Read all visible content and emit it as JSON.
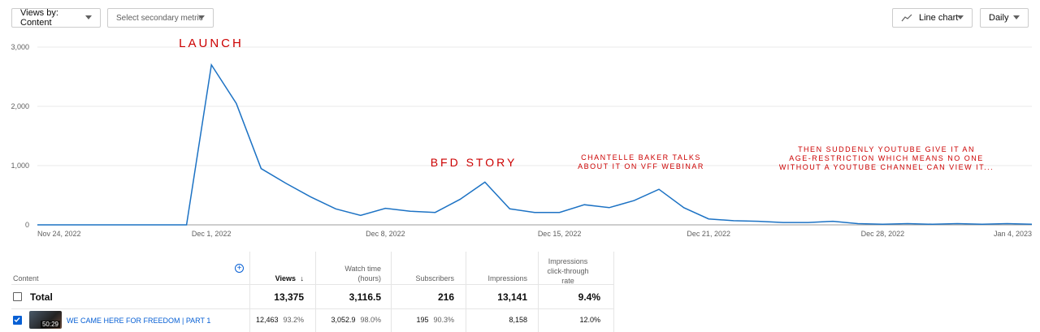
{
  "toolbar": {
    "views_by": "Views by: Content",
    "secondary_metric": "Select secondary metric",
    "chart_type": "Line chart",
    "granularity": "Daily"
  },
  "chart_data": {
    "type": "line",
    "y_ticks": [
      "3,000",
      "2,000",
      "1,000",
      "0"
    ],
    "ylim": [
      0,
      3000
    ],
    "x_tick_labels": [
      "Nov 24, 2022",
      "Dec 1, 2022",
      "Dec 8, 2022",
      "Dec 15, 2022",
      "Dec 21, 2022",
      "Dec 28, 2022",
      "Jan 4, 2023"
    ],
    "series": [
      {
        "values": [
          0,
          0,
          0,
          0,
          0,
          0,
          0,
          2700,
          2050,
          950,
          700,
          470,
          270,
          160,
          280,
          230,
          210,
          430,
          720,
          270,
          210,
          210,
          340,
          290,
          410,
          600,
          290,
          100,
          70,
          60,
          40,
          40,
          60,
          20,
          10,
          20,
          10,
          20,
          10,
          20,
          10
        ]
      }
    ],
    "annotations": [
      {
        "lines": [
          "LAUNCH"
        ]
      },
      {
        "lines": [
          "BFD STORY"
        ]
      },
      {
        "lines": [
          "CHANTELLE BAKER TALKS",
          "ABOUT IT ON VFF WEBINAR"
        ]
      },
      {
        "lines": [
          "THEN SUDDENLY YOUTUBE GIVE IT AN",
          "AGE-RESTRICTION WHICH MEANS NO ONE",
          "WITHOUT A YOUTUBE CHANNEL CAN VIEW IT..."
        ]
      }
    ],
    "color": "#1c72c4"
  },
  "table": {
    "headers": {
      "content": "Content",
      "views": "Views",
      "watch_time_1": "Watch time",
      "watch_time_2": "(hours)",
      "subscribers": "Subscribers",
      "impressions": "Impressions",
      "ctr_1": "Impressions",
      "ctr_2": "click-through",
      "ctr_3": "rate"
    },
    "total": {
      "label": "Total",
      "views": "13,375",
      "watch_time": "3,116.5",
      "subscribers": "216",
      "impressions": "13,141",
      "ctr": "9.4%"
    },
    "row1": {
      "duration": "50:29",
      "title": "WE CAME HERE FOR FREEDOM | PART 1",
      "views": "12,463",
      "views_pct": "93.2%",
      "watch_time": "3,052.9",
      "watch_pct": "98.0%",
      "subscribers": "195",
      "subs_pct": "90.3%",
      "impressions": "8,158",
      "ctr": "12.0%"
    }
  }
}
